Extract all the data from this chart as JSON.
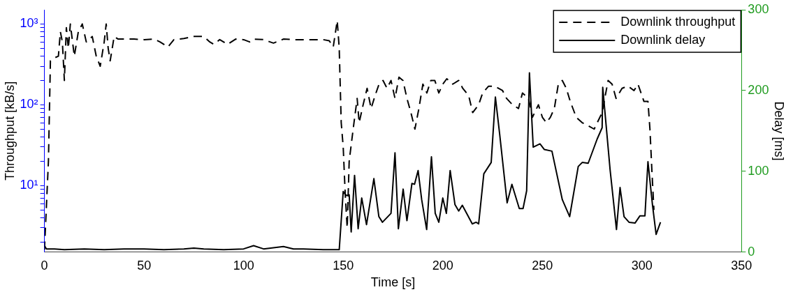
{
  "chart_data": {
    "type": "line",
    "xlabel": "Time [s]",
    "ylabel": "Throughput [kB/s]",
    "y2label": "Delay [ms]",
    "log": "y",
    "legend": "top right",
    "marker": "none",
    "grid": false,
    "xlim": [
      0,
      350
    ],
    "xticks": [
      0,
      50,
      100,
      150,
      200,
      250,
      300,
      350
    ],
    "ylim": [
      1.5,
      1500
    ],
    "yticks": [
      {
        "value": 2,
        "label": null
      },
      {
        "value": 3,
        "label": null
      },
      {
        "value": 4,
        "label": null
      },
      {
        "value": 5,
        "label": null
      },
      {
        "value": 6,
        "label": null
      },
      {
        "value": 7,
        "label": null
      },
      {
        "value": 8,
        "label": null
      },
      {
        "value": 9,
        "label": null
      },
      {
        "value": 10,
        "label": "10¹"
      },
      {
        "value": 20,
        "label": null
      },
      {
        "value": 30,
        "label": null
      },
      {
        "value": 40,
        "label": null
      },
      {
        "value": 50,
        "label": null
      },
      {
        "value": 60,
        "label": null
      },
      {
        "value": 70,
        "label": null
      },
      {
        "value": 80,
        "label": null
      },
      {
        "value": 90,
        "label": null
      },
      {
        "value": 100,
        "label": "10²"
      },
      {
        "value": 200,
        "label": null
      },
      {
        "value": 300,
        "label": null
      },
      {
        "value": 400,
        "label": null
      },
      {
        "value": 500,
        "label": null
      },
      {
        "value": 600,
        "label": null
      },
      {
        "value": 700,
        "label": null
      },
      {
        "value": 800,
        "label": null
      },
      {
        "value": 900,
        "label": null
      },
      {
        "value": 1000,
        "label": "10³"
      }
    ],
    "y2lim": [
      0,
      300
    ],
    "y2ticks": [
      0,
      100,
      200,
      300
    ],
    "series": [
      {
        "name": "Downlink throughput",
        "color": "#000000",
        "line_style": "dashed",
        "axis": "y",
        "x": [
          0,
          2,
          3,
          5,
          7,
          8,
          9,
          10,
          11,
          12,
          13,
          15,
          17,
          19,
          21,
          24,
          26,
          28,
          30,
          31,
          32,
          33,
          35,
          37,
          40,
          45,
          50,
          55,
          58,
          62,
          65,
          70,
          75,
          80,
          83,
          85,
          88,
          92,
          96,
          100,
          103,
          105,
          110,
          115,
          120,
          125,
          130,
          135,
          140,
          143,
          145,
          147,
          148,
          149,
          150,
          151,
          152,
          153,
          155,
          157,
          158,
          160,
          162,
          164,
          166,
          168,
          170,
          172,
          174,
          176,
          178,
          180,
          182,
          184,
          186,
          188,
          190,
          192,
          194,
          196,
          198,
          200,
          202,
          205,
          208,
          210,
          213,
          215,
          218,
          220,
          223,
          226,
          230,
          232,
          235,
          238,
          240,
          243,
          245,
          248,
          250,
          252,
          254,
          256,
          258,
          260,
          262,
          264,
          267,
          270,
          273,
          276,
          280,
          283,
          285,
          287,
          290,
          293,
          296,
          298,
          301,
          303,
          304,
          305,
          306
        ],
        "values": [
          1.6,
          20,
          350,
          380,
          400,
          800,
          600,
          200,
          900,
          500,
          1000,
          400,
          800,
          1000,
          600,
          700,
          400,
          300,
          600,
          1000,
          500,
          350,
          700,
          650,
          650,
          650,
          640,
          650,
          600,
          520,
          640,
          660,
          700,
          700,
          600,
          560,
          640,
          560,
          650,
          640,
          600,
          650,
          640,
          580,
          650,
          640,
          640,
          640,
          640,
          620,
          520,
          1100,
          500,
          60,
          30,
          8,
          3,
          20,
          50,
          120,
          60,
          100,
          160,
          90,
          130,
          180,
          200,
          160,
          200,
          120,
          220,
          200,
          120,
          80,
          50,
          90,
          180,
          140,
          200,
          200,
          140,
          180,
          210,
          180,
          200,
          160,
          130,
          80,
          100,
          140,
          170,
          170,
          150,
          120,
          100,
          90,
          140,
          120,
          70,
          100,
          70,
          60,
          70,
          90,
          180,
          200,
          160,
          110,
          70,
          60,
          55,
          50,
          80,
          200,
          180,
          120,
          160,
          170,
          150,
          180,
          110,
          110,
          50,
          15,
          5
        ]
      },
      {
        "name": "Downlink delay",
        "color": "#000000",
        "line_style": "solid",
        "axis": "y2",
        "x": [
          0,
          1,
          5,
          10,
          20,
          30,
          40,
          50,
          60,
          70,
          75,
          80,
          90,
          100,
          105,
          110,
          120,
          125,
          130,
          140,
          147,
          148,
          150,
          151.5,
          153,
          154,
          155.7,
          157.5,
          159.3,
          161.7,
          165.4,
          167.9,
          169.7,
          174,
          176,
          177.7,
          180.1,
          182,
          184.5,
          185.8,
          187.6,
          189.4,
          191.9,
          194.3,
          196.2,
          198,
          200,
          201.8,
          203.7,
          206.1,
          208,
          209.8,
          212,
          214.8,
          216.7,
          218,
          220.6,
          224.3,
          226.4,
          228.6,
          232.3,
          234.7,
          238.4,
          240.3,
          242.1,
          243.5,
          245.4,
          248.8,
          251,
          254.8,
          260,
          263.7,
          268,
          270,
          273,
          277.5,
          280,
          280.3,
          284,
          287.2,
          289,
          291,
          293.5,
          296.5,
          299,
          301.5,
          303,
          305.3,
          307.1,
          309.3
        ],
        "values": [
          8,
          4,
          4,
          3,
          4,
          3,
          4,
          4,
          3,
          4,
          5,
          4,
          3,
          4,
          8,
          4,
          7,
          4,
          4,
          3,
          3,
          3,
          75,
          70,
          71,
          25,
          95,
          29,
          67,
          34,
          91,
          44,
          37,
          48,
          123,
          29,
          78,
          39,
          85,
          84,
          101,
          65,
          28,
          118,
          48,
          37,
          67,
          48,
          101,
          59,
          51,
          58,
          48,
          35,
          37,
          35,
          97,
          111,
          192,
          145,
          61,
          84,
          54,
          54,
          76,
          222,
          130,
          134,
          127,
          125,
          65,
          44,
          106,
          111,
          110,
          140,
          154,
          204,
          102,
          28,
          80,
          44,
          37,
          36,
          45,
          45,
          112,
          58,
          22,
          37
        ]
      }
    ]
  }
}
